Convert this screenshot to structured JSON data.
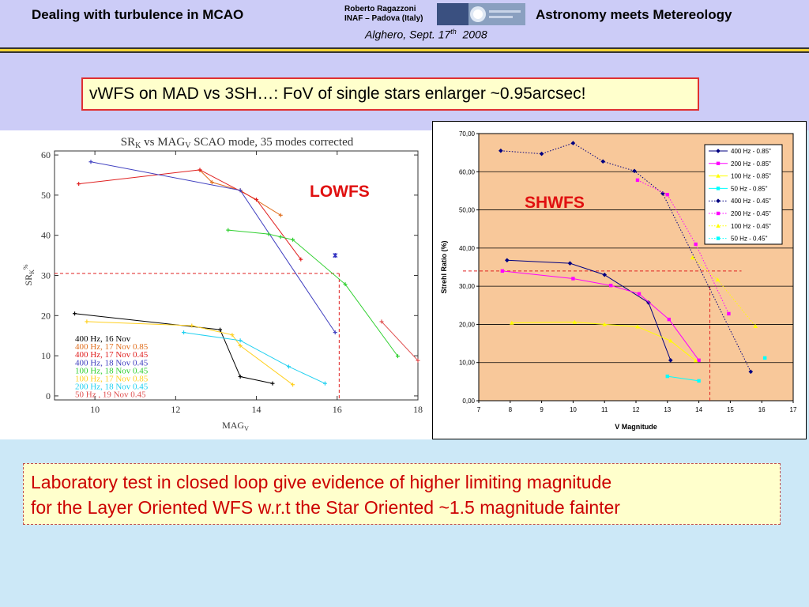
{
  "header": {
    "left_title": "Dealing with turbulence in MCAO",
    "author_name": "Roberto Ragazzoni",
    "author_affil": "INAF – Padova (Italy)",
    "right_title": "Astronomy meets Metereology",
    "date_prefix": "Alghero, Sept. 17",
    "date_sup": "th",
    "date_year": "2008"
  },
  "slide_title": "vWFS on MAD vs 3SH…: FoV of single stars enlarger ~0.95arcsec!",
  "conclusion": {
    "line1": "Laboratory test in closed loop give evidence of  higher limiting magnitude",
    "line2": "for the Layer Oriented WFS w.r.t the Star Oriented ~1.5 magnitude fainter"
  },
  "chart_data": [
    {
      "type": "line",
      "title": "SRK vs MAGV SCAO mode, 35 modes corrected",
      "title_parts": {
        "a": "SR",
        "a_sub": "K",
        "b": " vs MAG",
        "b_sub": "V",
        "c": " SCAO mode, 35 modes corrected"
      },
      "annotation": "LOWFS",
      "xlabel": "MAGV",
      "xlabel_parts": {
        "main": "MAG",
        "sub": "V"
      },
      "ylabel": "SRK%",
      "ylabel_parts": {
        "main": "SR",
        "sub": "K",
        "sup": "%"
      },
      "xlim": [
        9,
        18
      ],
      "ylim": [
        -1,
        61
      ],
      "xticks": [
        "10",
        "12",
        "14",
        "16",
        "18"
      ],
      "yticks": [
        "0",
        "10",
        "20",
        "30",
        "40",
        "50",
        "60"
      ],
      "xtick_values": [
        10,
        12,
        14,
        16,
        18
      ],
      "ytick_values": [
        0,
        10,
        20,
        30,
        40,
        50,
        60
      ],
      "threshold": {
        "x": 16.05,
        "y": 30.5
      },
      "series": [
        {
          "name": "400 Hz, 16 Nov",
          "color": "#000000",
          "x": [
            9.5,
            13.1,
            13.6,
            14.4
          ],
          "y": [
            20.5,
            16.5,
            4.8,
            3.1
          ]
        },
        {
          "name": "400 Hz, 17 Nov 0.85",
          "color": "#e07020",
          "x": [
            12.6,
            12.9,
            13.6,
            14.6
          ],
          "y": [
            56.2,
            53.2,
            51.2,
            45.0
          ]
        },
        {
          "name": "400 Hz, 17 Nov 0.45",
          "color": "#e02020",
          "x": [
            9.6,
            12.6,
            14.0,
            15.1
          ],
          "y": [
            52.8,
            56.3,
            48.9,
            34.0
          ]
        },
        {
          "name": "400 Hz, 18 Nov 0.45",
          "color": "#4040c0",
          "x": [
            9.9,
            13.6,
            15.95
          ],
          "y": [
            58.3,
            51.2,
            15.8
          ]
        },
        {
          "name": "100 Hz, 18 Nov 0.45",
          "color": "#30d030",
          "x": [
            13.3,
            14.3,
            14.6,
            14.9,
            16.2,
            17.5
          ],
          "y": [
            41.3,
            40.3,
            39.6,
            38.9,
            27.8,
            9.9
          ]
        },
        {
          "name": "100 Hz, 17 Nov 0.85",
          "color": "#ffd020",
          "x": [
            9.8,
            12.4,
            13.4,
            13.6,
            14.9
          ],
          "y": [
            18.5,
            17.5,
            15.2,
            12.5,
            2.8
          ]
        },
        {
          "name": "200 Hz, 18 Nov 0.45",
          "color": "#20d0f0",
          "x": [
            12.2,
            13.6,
            14.8,
            15.7
          ],
          "y": [
            15.8,
            13.8,
            7.3,
            3.1
          ]
        },
        {
          "name": "50 Hz , 19 Nov 0.45",
          "color": "#e05050",
          "x": [
            17.1,
            18.0
          ],
          "y": [
            18.5,
            8.8
          ]
        }
      ],
      "extra_marker": {
        "x": 15.95,
        "y": 35.0,
        "color": "#3030c0"
      }
    },
    {
      "type": "line",
      "annotation": "SHWFS",
      "xlabel": "V Magnitude",
      "ylabel": "Strehl Ratio (%)",
      "xlim": [
        7,
        17
      ],
      "ylim": [
        0,
        70
      ],
      "xticks": [
        "7",
        "8",
        "9",
        "10",
        "11",
        "12",
        "13",
        "14",
        "15",
        "16",
        "17"
      ],
      "yticks": [
        "0,00",
        "10,00",
        "20,00",
        "30,00",
        "40,00",
        "50,00",
        "60,00",
        "70,00"
      ],
      "xtick_values": [
        7,
        8,
        9,
        10,
        11,
        12,
        13,
        14,
        15,
        16,
        17
      ],
      "ytick_values": [
        0,
        10,
        20,
        30,
        40,
        50,
        60,
        70
      ],
      "grid": true,
      "legend": "top-right",
      "threshold": {
        "x": 14.35,
        "y": 34.0
      },
      "colors": {
        "plot_bg": "#f8c89a",
        "frame": "#000000"
      },
      "series": [
        {
          "name": "400 Hz - 0.85\"",
          "color": "#000080",
          "dash": false,
          "marker": "diamond",
          "x": [
            7.9,
            9.9,
            11.0,
            12.4,
            13.1
          ],
          "y": [
            36.8,
            36.0,
            33.0,
            25.7,
            10.6
          ]
        },
        {
          "name": "200 Hz - 0.85\"",
          "color": "#ff00ff",
          "dash": false,
          "marker": "square",
          "x": [
            7.75,
            10.0,
            11.2,
            12.1,
            13.05,
            14.0
          ],
          "y": [
            34.0,
            32.0,
            30.2,
            28.0,
            21.3,
            10.6
          ]
        },
        {
          "name": "100 Hz - 0.85\"",
          "color": "#ffff00",
          "dash": false,
          "marker": "triangle",
          "x": [
            8.05,
            10.05,
            11.0,
            12.05,
            13.1,
            13.9
          ],
          "y": [
            20.4,
            20.6,
            20.0,
            19.4,
            15.7,
            10.5
          ]
        },
        {
          "name": "50 Hz - 0.85\"",
          "color": "#00ffff",
          "dash": false,
          "marker": "x",
          "x": [
            13.0,
            14.0
          ],
          "y": [
            6.4,
            5.2
          ]
        },
        {
          "name": "400 Hz - 0.45\"",
          "color": "#000080",
          "dash": true,
          "marker": "diamond",
          "x": [
            7.7,
            9.0,
            10.0,
            10.95,
            11.95,
            12.85,
            15.65
          ],
          "y": [
            65.5,
            64.7,
            67.5,
            62.7,
            60.2,
            54.3,
            7.6
          ]
        },
        {
          "name": "200 Hz - 0.45\"",
          "color": "#ff00ff",
          "dash": true,
          "marker": "square",
          "x": [
            12.05,
            13.0,
            13.9,
            14.95
          ],
          "y": [
            57.8,
            54.0,
            41.0,
            22.8
          ]
        },
        {
          "name": "100 Hz - 0.45\"",
          "color": "#ffff00",
          "dash": true,
          "marker": "triangle",
          "x": [
            13.8,
            14.6,
            15.8
          ],
          "y": [
            37.5,
            31.7,
            19.5
          ]
        },
        {
          "name": "50 Hz - 0.45\"",
          "color": "#00ffff",
          "dash": true,
          "marker": "x",
          "x": [
            16.1
          ],
          "y": [
            11.2
          ]
        }
      ]
    }
  ]
}
